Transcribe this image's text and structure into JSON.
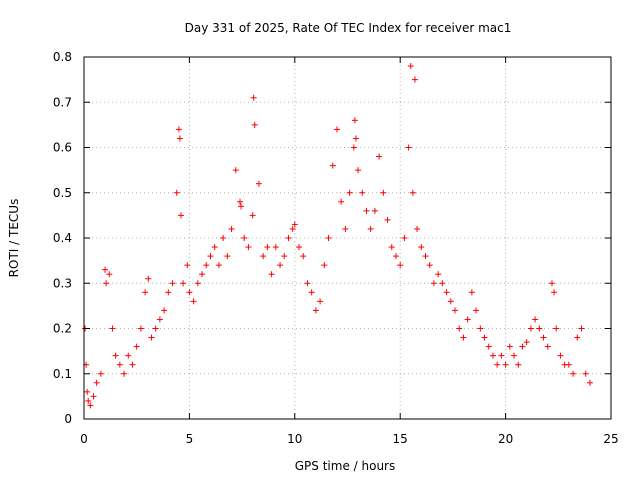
{
  "chart_data": {
    "type": "scatter",
    "title": "Day 331 of 2025, Rate Of TEC Index for receiver mac1",
    "xlabel": "GPS time / hours",
    "ylabel": "ROTI / TECUs",
    "xlim": [
      0,
      25
    ],
    "ylim": [
      0,
      0.8
    ],
    "xticks": [
      0,
      5,
      10,
      15,
      20,
      25
    ],
    "yticks": [
      0,
      0.1,
      0.2,
      0.3,
      0.4,
      0.5,
      0.6,
      0.7,
      0.8
    ],
    "xtick_labels": [
      "0",
      "5",
      "10",
      "15",
      "20",
      "25"
    ],
    "ytick_labels": [
      "0",
      "0.1",
      "0.2",
      "0.3",
      "0.4",
      "0.5",
      "0.6",
      "0.7",
      "0.8"
    ],
    "grid": true,
    "marker": "+",
    "color": "#ff0000",
    "series": [
      {
        "x": [
          0.05,
          0.1,
          0.15,
          0.2,
          0.3,
          0.45,
          0.6,
          0.8,
          1.0,
          1.05,
          1.2,
          1.35,
          1.5,
          1.7,
          1.9,
          2.1,
          2.3,
          2.5,
          2.7,
          2.9,
          3.05,
          3.2,
          3.4,
          3.6,
          3.8,
          4.0,
          4.2,
          4.4,
          4.5,
          4.55,
          4.6,
          4.7,
          4.9,
          5.0,
          5.2,
          5.4,
          5.6,
          5.8,
          6.0,
          6.2,
          6.4,
          6.6,
          6.8,
          7.0,
          7.2,
          7.4,
          7.45,
          7.6,
          7.8,
          8.0,
          8.05,
          8.1,
          8.3,
          8.5,
          8.7,
          8.9,
          9.1,
          9.3,
          9.5,
          9.7,
          9.9,
          10.0,
          10.2,
          10.4,
          10.6,
          10.8,
          11.0,
          11.2,
          11.4,
          11.6,
          11.8,
          12.0,
          12.2,
          12.4,
          12.6,
          12.8,
          12.85,
          12.9,
          13.0,
          13.2,
          13.4,
          13.6,
          13.8,
          14.0,
          14.2,
          14.4,
          14.6,
          14.8,
          15.0,
          15.2,
          15.4,
          15.5,
          15.6,
          15.7,
          15.8,
          16.0,
          16.2,
          16.4,
          16.6,
          16.8,
          17.0,
          17.2,
          17.4,
          17.6,
          17.8,
          18.0,
          18.2,
          18.4,
          18.6,
          18.8,
          19.0,
          19.2,
          19.4,
          19.6,
          19.8,
          20.0,
          20.2,
          20.4,
          20.6,
          20.8,
          21.0,
          21.2,
          21.4,
          21.6,
          21.8,
          22.0,
          22.2,
          22.3,
          22.4,
          22.6,
          22.8,
          23.0,
          23.2,
          23.4,
          23.6,
          23.8,
          24.0
        ],
        "y": [
          0.2,
          0.12,
          0.06,
          0.04,
          0.03,
          0.05,
          0.08,
          0.1,
          0.33,
          0.3,
          0.32,
          0.2,
          0.14,
          0.12,
          0.1,
          0.14,
          0.12,
          0.16,
          0.2,
          0.28,
          0.31,
          0.18,
          0.2,
          0.22,
          0.24,
          0.28,
          0.3,
          0.5,
          0.64,
          0.62,
          0.45,
          0.3,
          0.34,
          0.28,
          0.26,
          0.3,
          0.32,
          0.34,
          0.36,
          0.38,
          0.34,
          0.4,
          0.36,
          0.42,
          0.55,
          0.48,
          0.47,
          0.4,
          0.38,
          0.45,
          0.71,
          0.65,
          0.52,
          0.36,
          0.38,
          0.32,
          0.38,
          0.34,
          0.36,
          0.4,
          0.42,
          0.43,
          0.38,
          0.36,
          0.3,
          0.28,
          0.24,
          0.26,
          0.34,
          0.4,
          0.56,
          0.64,
          0.48,
          0.42,
          0.5,
          0.6,
          0.66,
          0.62,
          0.55,
          0.5,
          0.46,
          0.42,
          0.46,
          0.58,
          0.5,
          0.44,
          0.38,
          0.36,
          0.34,
          0.4,
          0.6,
          0.78,
          0.5,
          0.75,
          0.42,
          0.38,
          0.36,
          0.34,
          0.3,
          0.32,
          0.3,
          0.28,
          0.26,
          0.24,
          0.2,
          0.18,
          0.22,
          0.28,
          0.24,
          0.2,
          0.18,
          0.16,
          0.14,
          0.12,
          0.14,
          0.12,
          0.16,
          0.14,
          0.12,
          0.16,
          0.17,
          0.2,
          0.22,
          0.2,
          0.18,
          0.16,
          0.3,
          0.28,
          0.2,
          0.14,
          0.12,
          0.12,
          0.1,
          0.18,
          0.2,
          0.1,
          0.08
        ]
      }
    ]
  }
}
